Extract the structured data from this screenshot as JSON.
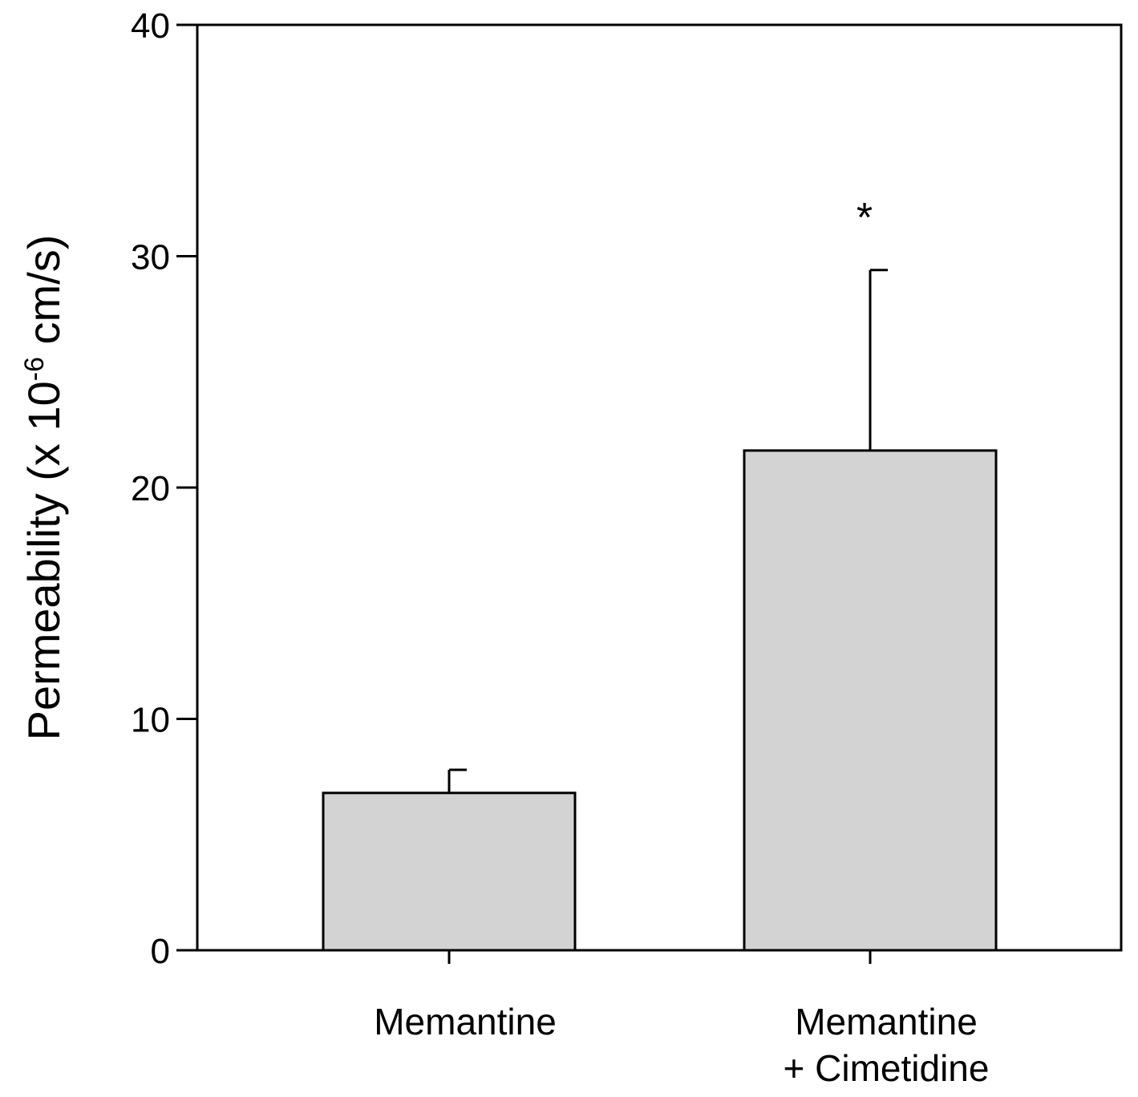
{
  "chart_data": {
    "type": "bar",
    "title": "",
    "xlabel": "",
    "ylabel": {
      "prefix": "Permeability (x 10",
      "superscript": "-6",
      "suffix": " cm/s)"
    },
    "ylim": [
      0,
      40
    ],
    "yticks": [
      0,
      10,
      20,
      30,
      40
    ],
    "ytick_labels": [
      "0",
      "10",
      "20",
      "30",
      "40"
    ],
    "categories": [
      [
        "Memantine"
      ],
      [
        "Memantine",
        "+ Cimetidine"
      ]
    ],
    "values": [
      6.8,
      21.6
    ],
    "error_upper": [
      1.0,
      7.8
    ],
    "annotations": [
      "",
      "*"
    ],
    "colors": {
      "bar_fill": "#d3d3d3",
      "bar_stroke": "#000000",
      "axis": "#000000"
    },
    "grid": false,
    "legend": "none"
  }
}
